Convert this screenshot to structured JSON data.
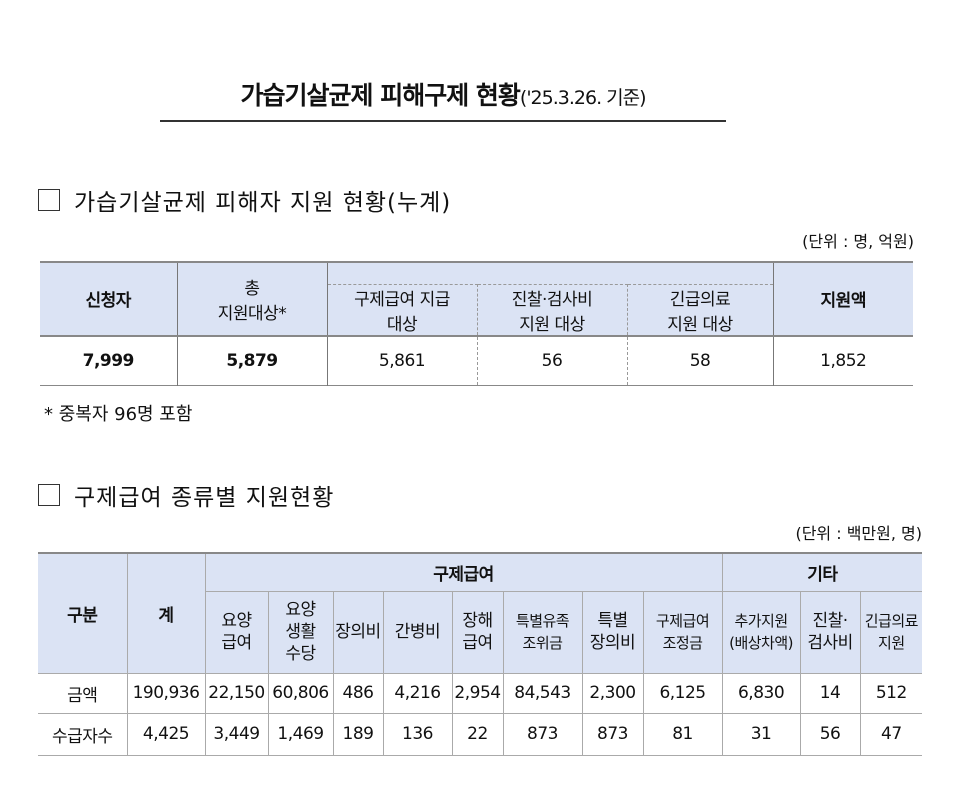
{
  "title": {
    "main": "가습기살균제 피해구제 현황",
    "date": "('25.3.26. 기준)"
  },
  "section1": {
    "heading": "가습기살균제 피해자 지원 현황(누계)",
    "unit": "(단위 : 명, 억원)",
    "headers": [
      "신청자",
      "총",
      "지원대상*",
      "구제급여 지급",
      "대상",
      "진찰·검사비",
      "지원 대상",
      "긴급의료",
      "지원 대상",
      "지원액"
    ],
    "values": [
      "7,999",
      "5,879",
      "5,861",
      "56",
      "58",
      "1,852"
    ],
    "note": "* 중복자 96명 포함"
  },
  "section2": {
    "heading": "구제급여 종류별 지원현황",
    "unit": "(단위 : 백만원, 명)",
    "group_headers": [
      "구분",
      "계",
      "구제급여",
      "기타"
    ],
    "columns": [
      [
        "요양",
        "급여"
      ],
      [
        "요양",
        "생활",
        "수당"
      ],
      [
        "장의비"
      ],
      [
        "간병비"
      ],
      [
        "장해",
        "급여"
      ],
      [
        "특별유족",
        "조위금"
      ],
      [
        "특별",
        "장의비"
      ],
      [
        "구제급여",
        "조정금"
      ],
      [
        "추가지원",
        "(배상차액)"
      ],
      [
        "진찰·",
        "검사비"
      ],
      [
        "긴급의료",
        "지원"
      ]
    ],
    "rows": [
      {
        "label": "금액",
        "values": [
          "190,936",
          "22,150",
          "60,806",
          "486",
          "4,216",
          "2,954",
          "84,543",
          "2,300",
          "6,125",
          "6,830",
          "14",
          "512"
        ]
      },
      {
        "label": "수급자수",
        "values": [
          "4,425",
          "3,449",
          "1,469",
          "189",
          "136",
          "22",
          "873",
          "873",
          "81",
          "31",
          "56",
          "47"
        ]
      }
    ]
  },
  "colors": {
    "header_bg": "#dbe3f4"
  }
}
